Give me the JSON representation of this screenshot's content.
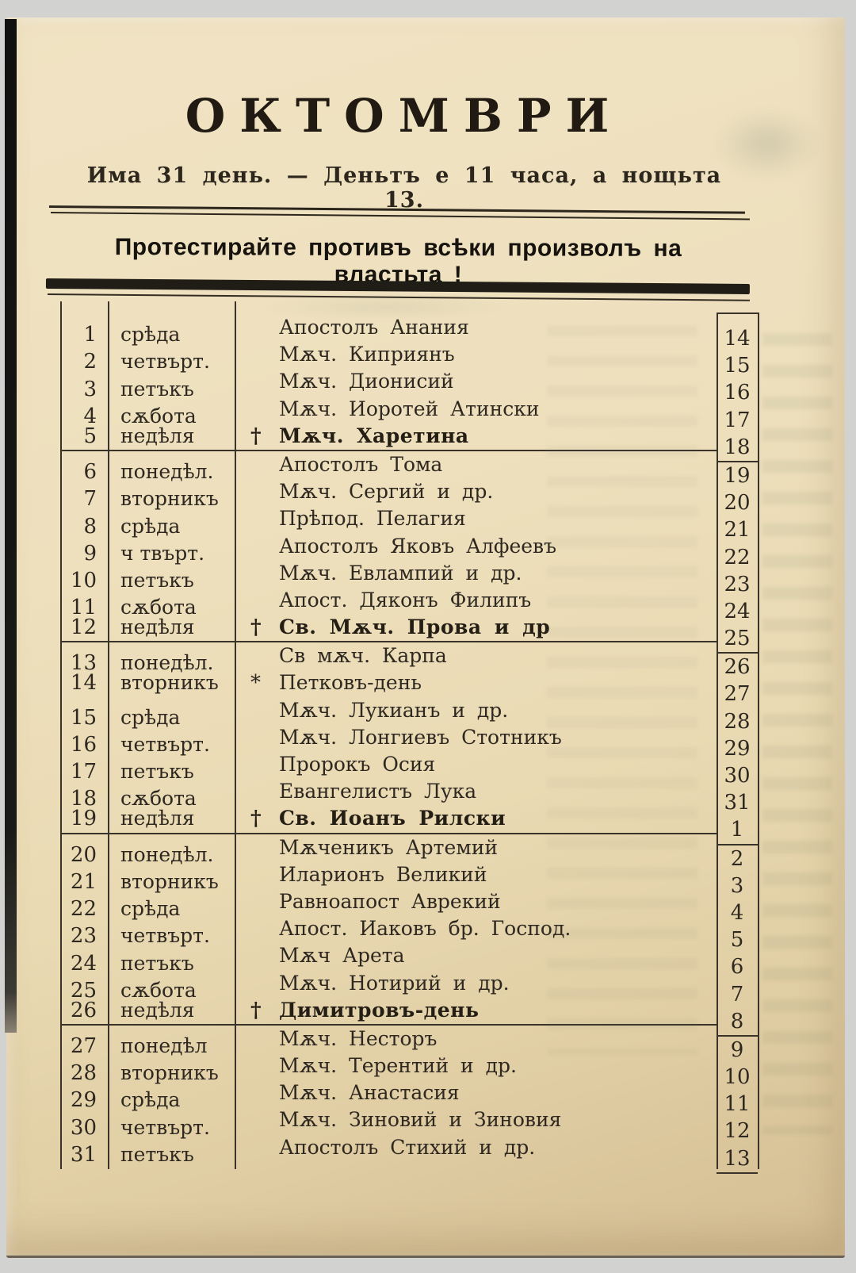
{
  "header": {
    "month_title": "ОКТОМВРИ",
    "summary_line": "Има 31 день. — Деньтъ е 11 часа, а нощьта 13.",
    "slogan": "Протестирайте противъ всѣки произволъ на властьта !"
  },
  "calendar": {
    "groups": [
      {
        "rows": [
          {
            "day": "1",
            "weekday": "срѣда",
            "marker": "",
            "feast": "Апостолъ Анания",
            "emphasis": false,
            "old_style_day": "14"
          },
          {
            "day": "2",
            "weekday": "четвърт.",
            "marker": "",
            "feast": "Мѫч. Киприянъ",
            "emphasis": false,
            "old_style_day": "15"
          },
          {
            "day": "3",
            "weekday": "петъкъ",
            "marker": "",
            "feast": "Мѫч. Дионисий",
            "emphasis": false,
            "old_style_day": "16"
          },
          {
            "day": "4",
            "weekday": "сѫбота",
            "marker": "",
            "feast": "Мѫч. Иоротей Атински",
            "emphasis": false,
            "old_style_day": "17"
          },
          {
            "day": "5",
            "weekday": "недѣля",
            "marker": "†",
            "feast": "Мѫч. Харетина",
            "emphasis": true,
            "old_style_day": "18"
          }
        ]
      },
      {
        "rows": [
          {
            "day": "6",
            "weekday": "понедѣл.",
            "marker": "",
            "feast": "Апостолъ Тома",
            "emphasis": false,
            "old_style_day": "19"
          },
          {
            "day": "7",
            "weekday": "вторникъ",
            "marker": "",
            "feast": "Мѫч. Сергий и др.",
            "emphasis": false,
            "old_style_day": "20"
          },
          {
            "day": "8",
            "weekday": "срѣда",
            "marker": "",
            "feast": "Прѣпод. Пелагия",
            "emphasis": false,
            "old_style_day": "21"
          },
          {
            "day": "9",
            "weekday": "ч твърт.",
            "marker": "",
            "feast": "Апостолъ Яковъ Алфеевъ",
            "emphasis": false,
            "old_style_day": "22"
          },
          {
            "day": "10",
            "weekday": "петъкъ",
            "marker": "",
            "feast": "Мѫч. Евлампий и др.",
            "emphasis": false,
            "old_style_day": "23"
          },
          {
            "day": "11",
            "weekday": "сѫбота",
            "marker": "",
            "feast": "Апост. Дяконъ Филипъ",
            "emphasis": false,
            "old_style_day": "24"
          },
          {
            "day": "12",
            "weekday": "недѣля",
            "marker": "†",
            "feast": "Св. Мѫч. Прова и др",
            "emphasis": true,
            "old_style_day": "25"
          }
        ]
      },
      {
        "rows": [
          {
            "day": "13",
            "weekday": "понедѣл.",
            "marker": "",
            "feast": "Св мѫч. Карпа",
            "emphasis": false,
            "old_style_day": "26"
          },
          {
            "day": "14",
            "weekday": "вторникъ",
            "marker": "*",
            "feast": "Петковъ-день",
            "emphasis": false,
            "old_style_day": "27"
          },
          {
            "day": "15",
            "weekday": "срѣда",
            "marker": "",
            "feast": "Мѫч. Лукианъ и др.",
            "emphasis": false,
            "old_style_day": "28"
          },
          {
            "day": "16",
            "weekday": "четвърт.",
            "marker": "",
            "feast": "Мѫч. Лонгиевъ Стотникъ",
            "emphasis": false,
            "old_style_day": "29"
          },
          {
            "day": "17",
            "weekday": "петъкъ",
            "marker": "",
            "feast": "Пророкъ Осия",
            "emphasis": false,
            "old_style_day": "30"
          },
          {
            "day": "18",
            "weekday": "сѫбота",
            "marker": "",
            "feast": "Евангелистъ Лука",
            "emphasis": false,
            "old_style_day": "31"
          },
          {
            "day": "19",
            "weekday": "недѣля",
            "marker": "†",
            "feast": "Св. Иоанъ Рилски",
            "emphasis": true,
            "old_style_day": "1"
          }
        ]
      },
      {
        "rows": [
          {
            "day": "20",
            "weekday": "понедѣл.",
            "marker": "",
            "feast": "Мѫченикъ Артемий",
            "emphasis": false,
            "old_style_day": "2"
          },
          {
            "day": "21",
            "weekday": "вторникъ",
            "marker": "",
            "feast": "Иларионъ Великий",
            "emphasis": false,
            "old_style_day": "3"
          },
          {
            "day": "22",
            "weekday": "срѣда",
            "marker": "",
            "feast": "Равноапост Аврекий",
            "emphasis": false,
            "old_style_day": "4"
          },
          {
            "day": "23",
            "weekday": "четвърт.",
            "marker": "",
            "feast": "Апост. Иаковъ бр. Господ.",
            "emphasis": false,
            "old_style_day": "5"
          },
          {
            "day": "24",
            "weekday": "петъкъ",
            "marker": "",
            "feast": "Мѫч Арета",
            "emphasis": false,
            "old_style_day": "6"
          },
          {
            "day": "25",
            "weekday": "сѫбота",
            "marker": "",
            "feast": "Мѫч. Нотирий и др.",
            "emphasis": false,
            "old_style_day": "7"
          },
          {
            "day": "26",
            "weekday": "недѣля",
            "marker": "†",
            "feast": "Димитровъ-день",
            "emphasis": true,
            "old_style_day": "8"
          }
        ]
      },
      {
        "rows": [
          {
            "day": "27",
            "weekday": "понедѣл",
            "marker": "",
            "feast": "Мѫч. Несторъ",
            "emphasis": false,
            "old_style_day": "9"
          },
          {
            "day": "28",
            "weekday": "вторникъ",
            "marker": "",
            "feast": "Мѫч. Терентий и др.",
            "emphasis": false,
            "old_style_day": "10"
          },
          {
            "day": "29",
            "weekday": "срѣда",
            "marker": "",
            "feast": "Мѫч. Анастасия",
            "emphasis": false,
            "old_style_day": "11"
          },
          {
            "day": "30",
            "weekday": "четвърт.",
            "marker": "",
            "feast": "Мѫч. Зиновий и Зиновия",
            "emphasis": false,
            "old_style_day": "12"
          },
          {
            "day": "31",
            "weekday": "петъкъ",
            "marker": "",
            "feast": "Апостолъ Стихий и др.",
            "emphasis": false,
            "old_style_day": "13"
          }
        ]
      }
    ]
  },
  "colors": {
    "paper": "#eee0bd",
    "ink": "#2e2820",
    "bar": "#201c16",
    "scan_background": "#d2d2d0",
    "left_edge_strip": "#141414"
  }
}
